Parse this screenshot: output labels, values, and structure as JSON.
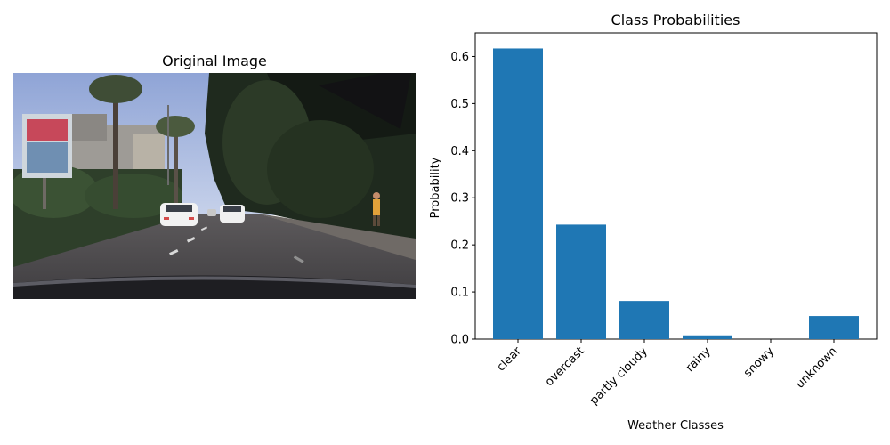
{
  "photo_panel": {
    "title": "Original Image"
  },
  "chart_data": {
    "type": "bar",
    "title": "Class Probabilities",
    "xlabel": "Weather Classes",
    "ylabel": "Probability",
    "categories": [
      "clear",
      "overcast",
      "partly cloudy",
      "rainy",
      "snowy",
      "unknown"
    ],
    "values": [
      0.617,
      0.243,
      0.081,
      0.008,
      0.0,
      0.049
    ],
    "ylim": [
      0,
      0.65
    ],
    "yticks": [
      0.0,
      0.1,
      0.2,
      0.3,
      0.4,
      0.5,
      0.6
    ],
    "ytick_labels": [
      "0.0",
      "0.1",
      "0.2",
      "0.3",
      "0.4",
      "0.5",
      "0.6"
    ],
    "bar_color": "#1f77b4",
    "grid": false,
    "xtick_rotation_deg": 45
  }
}
